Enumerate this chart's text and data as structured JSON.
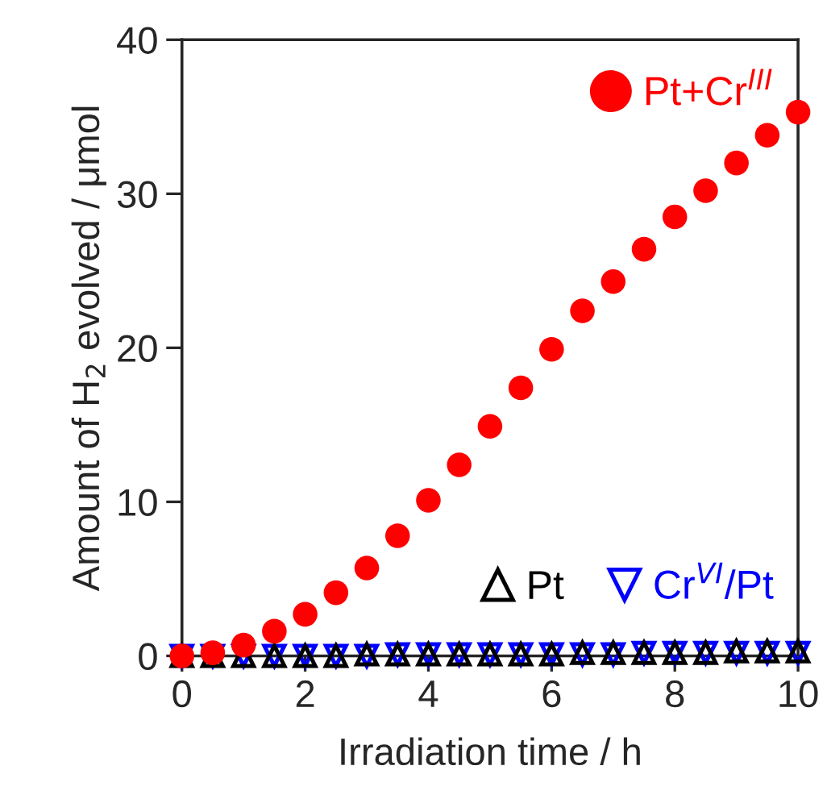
{
  "chart_data": {
    "type": "scatter",
    "xlabel": "Irradiation time / h",
    "ylabel": "Amount of H$_{2}$ evolved / μmol",
    "x": [
      0,
      0.5,
      1,
      1.5,
      2,
      2.5,
      3,
      3.5,
      4,
      4.5,
      5,
      5.5,
      6,
      6.5,
      7,
      7.5,
      8,
      8.5,
      9,
      9.5,
      10
    ],
    "series": [
      {
        "name": "Pt+Cr$^{III}$",
        "color": "#ff0000",
        "marker": "circle",
        "values": [
          0,
          0.2,
          0.7,
          1.6,
          2.7,
          4.1,
          5.7,
          7.8,
          10.1,
          12.4,
          14.9,
          17.4,
          19.9,
          22.4,
          24.3,
          26.4,
          28.5,
          30.2,
          32.0,
          33.8,
          35.3
        ]
      },
      {
        "name": "Pt",
        "color": "#000000",
        "marker": "triangle",
        "values": [
          0,
          0,
          0,
          0,
          0,
          0,
          0.1,
          0.1,
          0.1,
          0.1,
          0.1,
          0.1,
          0.1,
          0.2,
          0.2,
          0.2,
          0.2,
          0.2,
          0.3,
          0.3,
          0.3
        ]
      },
      {
        "name": "Cr$^{VI}$/Pt",
        "color": "#0000ff",
        "marker": "triangle_down",
        "values": [
          0,
          0,
          0,
          0,
          0,
          0,
          0,
          0.1,
          0.1,
          0.1,
          0.1,
          0.1,
          0.1,
          0.1,
          0.1,
          0.2,
          0.2,
          0.2,
          0.2,
          0.2,
          0.2
        ]
      }
    ],
    "xlim": [
      0,
      10
    ],
    "xticks": [
      0,
      2,
      4,
      6,
      8,
      10
    ],
    "ylim": [
      0,
      40
    ],
    "yticks": [
      0,
      10,
      20,
      30,
      40
    ],
    "grid": false,
    "legend": "top right"
  }
}
